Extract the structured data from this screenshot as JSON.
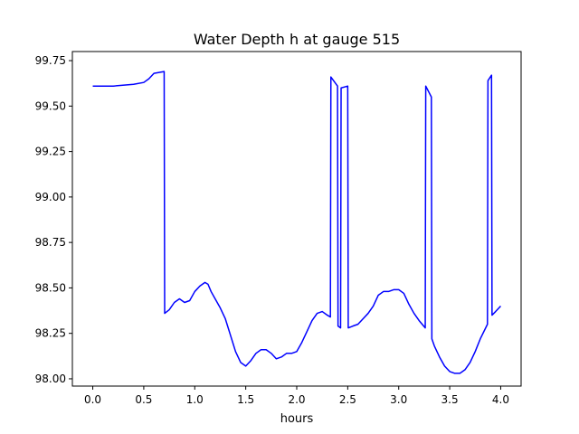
{
  "chart_data": {
    "type": "line",
    "title": "Water Depth h at gauge 515",
    "xlabel": "hours",
    "ylabel": "",
    "xlim": [
      -0.2,
      4.2
    ],
    "ylim": [
      97.96,
      99.8
    ],
    "xticks": [
      0.0,
      0.5,
      1.0,
      1.5,
      2.0,
      2.5,
      3.0,
      3.5,
      4.0
    ],
    "xtick_labels": [
      "0.0",
      "0.5",
      "1.0",
      "1.5",
      "2.0",
      "2.5",
      "3.0",
      "3.5",
      "4.0"
    ],
    "yticks": [
      98.0,
      98.25,
      98.5,
      98.75,
      99.0,
      99.25,
      99.5,
      99.75
    ],
    "ytick_labels": [
      "98.00",
      "98.25",
      "98.50",
      "98.75",
      "99.00",
      "99.25",
      "99.50",
      "99.75"
    ],
    "grid": false,
    "series": [
      {
        "color": "#0000ff",
        "x": [
          0.0,
          0.2,
          0.4,
          0.5,
          0.55,
          0.6,
          0.7,
          0.705,
          0.75,
          0.8,
          0.85,
          0.9,
          0.95,
          1.0,
          1.05,
          1.1,
          1.13,
          1.16,
          1.2,
          1.25,
          1.3,
          1.35,
          1.4,
          1.45,
          1.5,
          1.55,
          1.6,
          1.65,
          1.7,
          1.75,
          1.8,
          1.85,
          1.9,
          1.95,
          2.0,
          2.05,
          2.1,
          2.15,
          2.2,
          2.25,
          2.3,
          2.33,
          2.335,
          2.4,
          2.405,
          2.43,
          2.435,
          2.5,
          2.505,
          2.55,
          2.6,
          2.65,
          2.7,
          2.75,
          2.8,
          2.85,
          2.9,
          2.95,
          3.0,
          3.05,
          3.1,
          3.15,
          3.2,
          3.26,
          3.265,
          3.32,
          3.325,
          3.35,
          3.4,
          3.45,
          3.5,
          3.55,
          3.6,
          3.65,
          3.7,
          3.75,
          3.8,
          3.87,
          3.875,
          3.91,
          3.915,
          3.95,
          4.0
        ],
        "y": [
          99.61,
          99.61,
          99.62,
          99.63,
          99.65,
          99.68,
          99.69,
          98.36,
          98.38,
          98.42,
          98.44,
          98.42,
          98.43,
          98.48,
          98.51,
          98.53,
          98.52,
          98.48,
          98.44,
          98.39,
          98.33,
          98.24,
          98.15,
          98.09,
          98.07,
          98.1,
          98.14,
          98.16,
          98.16,
          98.14,
          98.11,
          98.12,
          98.14,
          98.14,
          98.15,
          98.2,
          98.26,
          98.32,
          98.36,
          98.37,
          98.35,
          98.34,
          99.66,
          99.61,
          98.29,
          98.28,
          99.6,
          99.61,
          98.28,
          98.29,
          98.3,
          98.33,
          98.36,
          98.4,
          98.46,
          98.48,
          98.48,
          98.49,
          98.49,
          98.47,
          98.41,
          98.36,
          98.32,
          98.28,
          99.61,
          99.55,
          98.22,
          98.18,
          98.12,
          98.07,
          98.04,
          98.03,
          98.03,
          98.05,
          98.09,
          98.15,
          98.22,
          98.3,
          99.64,
          99.67,
          98.35,
          98.37,
          98.4
        ]
      }
    ]
  }
}
